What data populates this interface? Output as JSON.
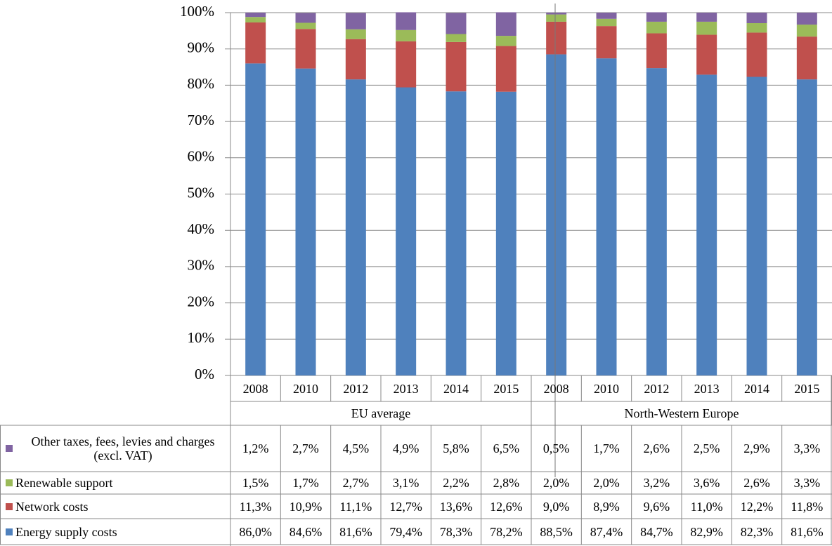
{
  "chart_data": {
    "type": "stacked_bar",
    "groups": [
      {
        "name": "EU average",
        "categories": [
          "2008",
          "2010",
          "2012",
          "2013",
          "2014",
          "2015"
        ]
      },
      {
        "name": "North-Western Europe",
        "categories": [
          "2008",
          "2010",
          "2012",
          "2013",
          "2014",
          "2015"
        ]
      }
    ],
    "series": [
      {
        "name": "Energy supply costs",
        "color": "#4f81bd",
        "values": [
          86.0,
          84.6,
          81.6,
          79.4,
          78.3,
          78.2,
          88.5,
          87.4,
          84.7,
          82.9,
          82.3,
          81.6
        ],
        "value_labels": [
          "86,0%",
          "84,6%",
          "81,6%",
          "79,4%",
          "78,3%",
          "78,2%",
          "88,5%",
          "87,4%",
          "84,7%",
          "82,9%",
          "82,3%",
          "81,6%"
        ]
      },
      {
        "name": "Network costs",
        "color": "#c0504d",
        "values": [
          11.3,
          10.9,
          11.1,
          12.7,
          13.6,
          12.6,
          9.0,
          8.9,
          9.6,
          11.0,
          12.2,
          11.8
        ],
        "value_labels": [
          "11,3%",
          "10,9%",
          "11,1%",
          "12,7%",
          "13,6%",
          "12,6%",
          "9,0%",
          "8,9%",
          "9,6%",
          "11,0%",
          "12,2%",
          "11,8%"
        ]
      },
      {
        "name": "Renewable support",
        "color": "#9bbb59",
        "values": [
          1.5,
          1.7,
          2.7,
          3.1,
          2.2,
          2.8,
          2.0,
          2.0,
          3.2,
          3.6,
          2.6,
          3.3
        ],
        "value_labels": [
          "1,5%",
          "1,7%",
          "2,7%",
          "3,1%",
          "2,2%",
          "2,8%",
          "2,0%",
          "2,0%",
          "3,2%",
          "3,6%",
          "2,6%",
          "3,3%"
        ]
      },
      {
        "name": "Other taxes, fees, levies and charges (excl. VAT)",
        "color": "#8064a2",
        "values": [
          1.2,
          2.7,
          4.5,
          4.9,
          5.8,
          6.5,
          0.5,
          1.7,
          2.6,
          2.5,
          2.9,
          3.3
        ],
        "value_labels": [
          "1,2%",
          "2,7%",
          "4,5%",
          "4,9%",
          "5,8%",
          "6,5%",
          "0,5%",
          "1,7%",
          "2,6%",
          "2,5%",
          "2,9%",
          "3,3%"
        ]
      }
    ],
    "ylim": [
      0,
      100
    ],
    "yticks": [
      {
        "value": 0,
        "label": "0%"
      },
      {
        "value": 10,
        "label": "10%"
      },
      {
        "value": 20,
        "label": "20%"
      },
      {
        "value": 30,
        "label": "30%"
      },
      {
        "value": 40,
        "label": "40%"
      },
      {
        "value": 50,
        "label": "50%"
      },
      {
        "value": 60,
        "label": "60%"
      },
      {
        "value": 70,
        "label": "70%"
      },
      {
        "value": 80,
        "label": "80%"
      },
      {
        "value": 90,
        "label": "90%"
      },
      {
        "value": 100,
        "label": "100%"
      }
    ],
    "grid": true
  }
}
